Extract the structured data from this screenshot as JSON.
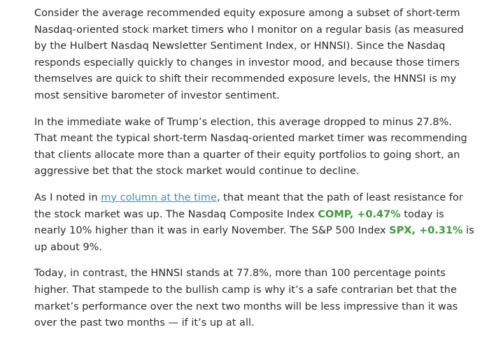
{
  "article": {
    "p1": "Consider the average recommended equity exposure among a subset of short-term Nasdaq-oriented stock market timers who I monitor on a regular basis (as measured by the Hulbert Nasdaq Newsletter Sentiment Index, or HNNSI). Since the Nasdaq responds especially quickly to changes in investor mood, and because those timers themselves are quick to shift their recommended exposure levels, the HNNSI is my most sensitive barometer of investor sentiment.",
    "p2": "In the immediate wake of Trump’s election, this average dropped to minus 27.8%. That meant the typical short-term Nasdaq-oriented market timer was recommending that clients allocate more than a quarter of their equity portfolios to going short, an aggressive bet that the stock market would continue to decline.",
    "p3": {
      "before_link": "As I noted in ",
      "link_text": "my column at the time",
      "after_link": ", that meant that the path of least resistance for the stock market was up. The Nasdaq Composite Index ",
      "ticker1": "COMP, +0.47%",
      "between_tickers": "  today is nearly 10% higher than it was in early November. The S&P 500 Index ",
      "ticker2": "SPX, +0.31%",
      "after_ticker2": "  is up about 9%."
    },
    "p4": "Today, in contrast, the HNNSI stands at 77.8%, more than 100 percentage points higher. That stampede to the bullish camp is why it’s a safe contrarian bet that the market’s performance over the next two months will be less impressive than it was over the past two months — if it’s up at all."
  },
  "colors": {
    "text": "#2b2b2b",
    "link": "#3d8eb9",
    "ticker_positive": "#3a9a3a"
  }
}
